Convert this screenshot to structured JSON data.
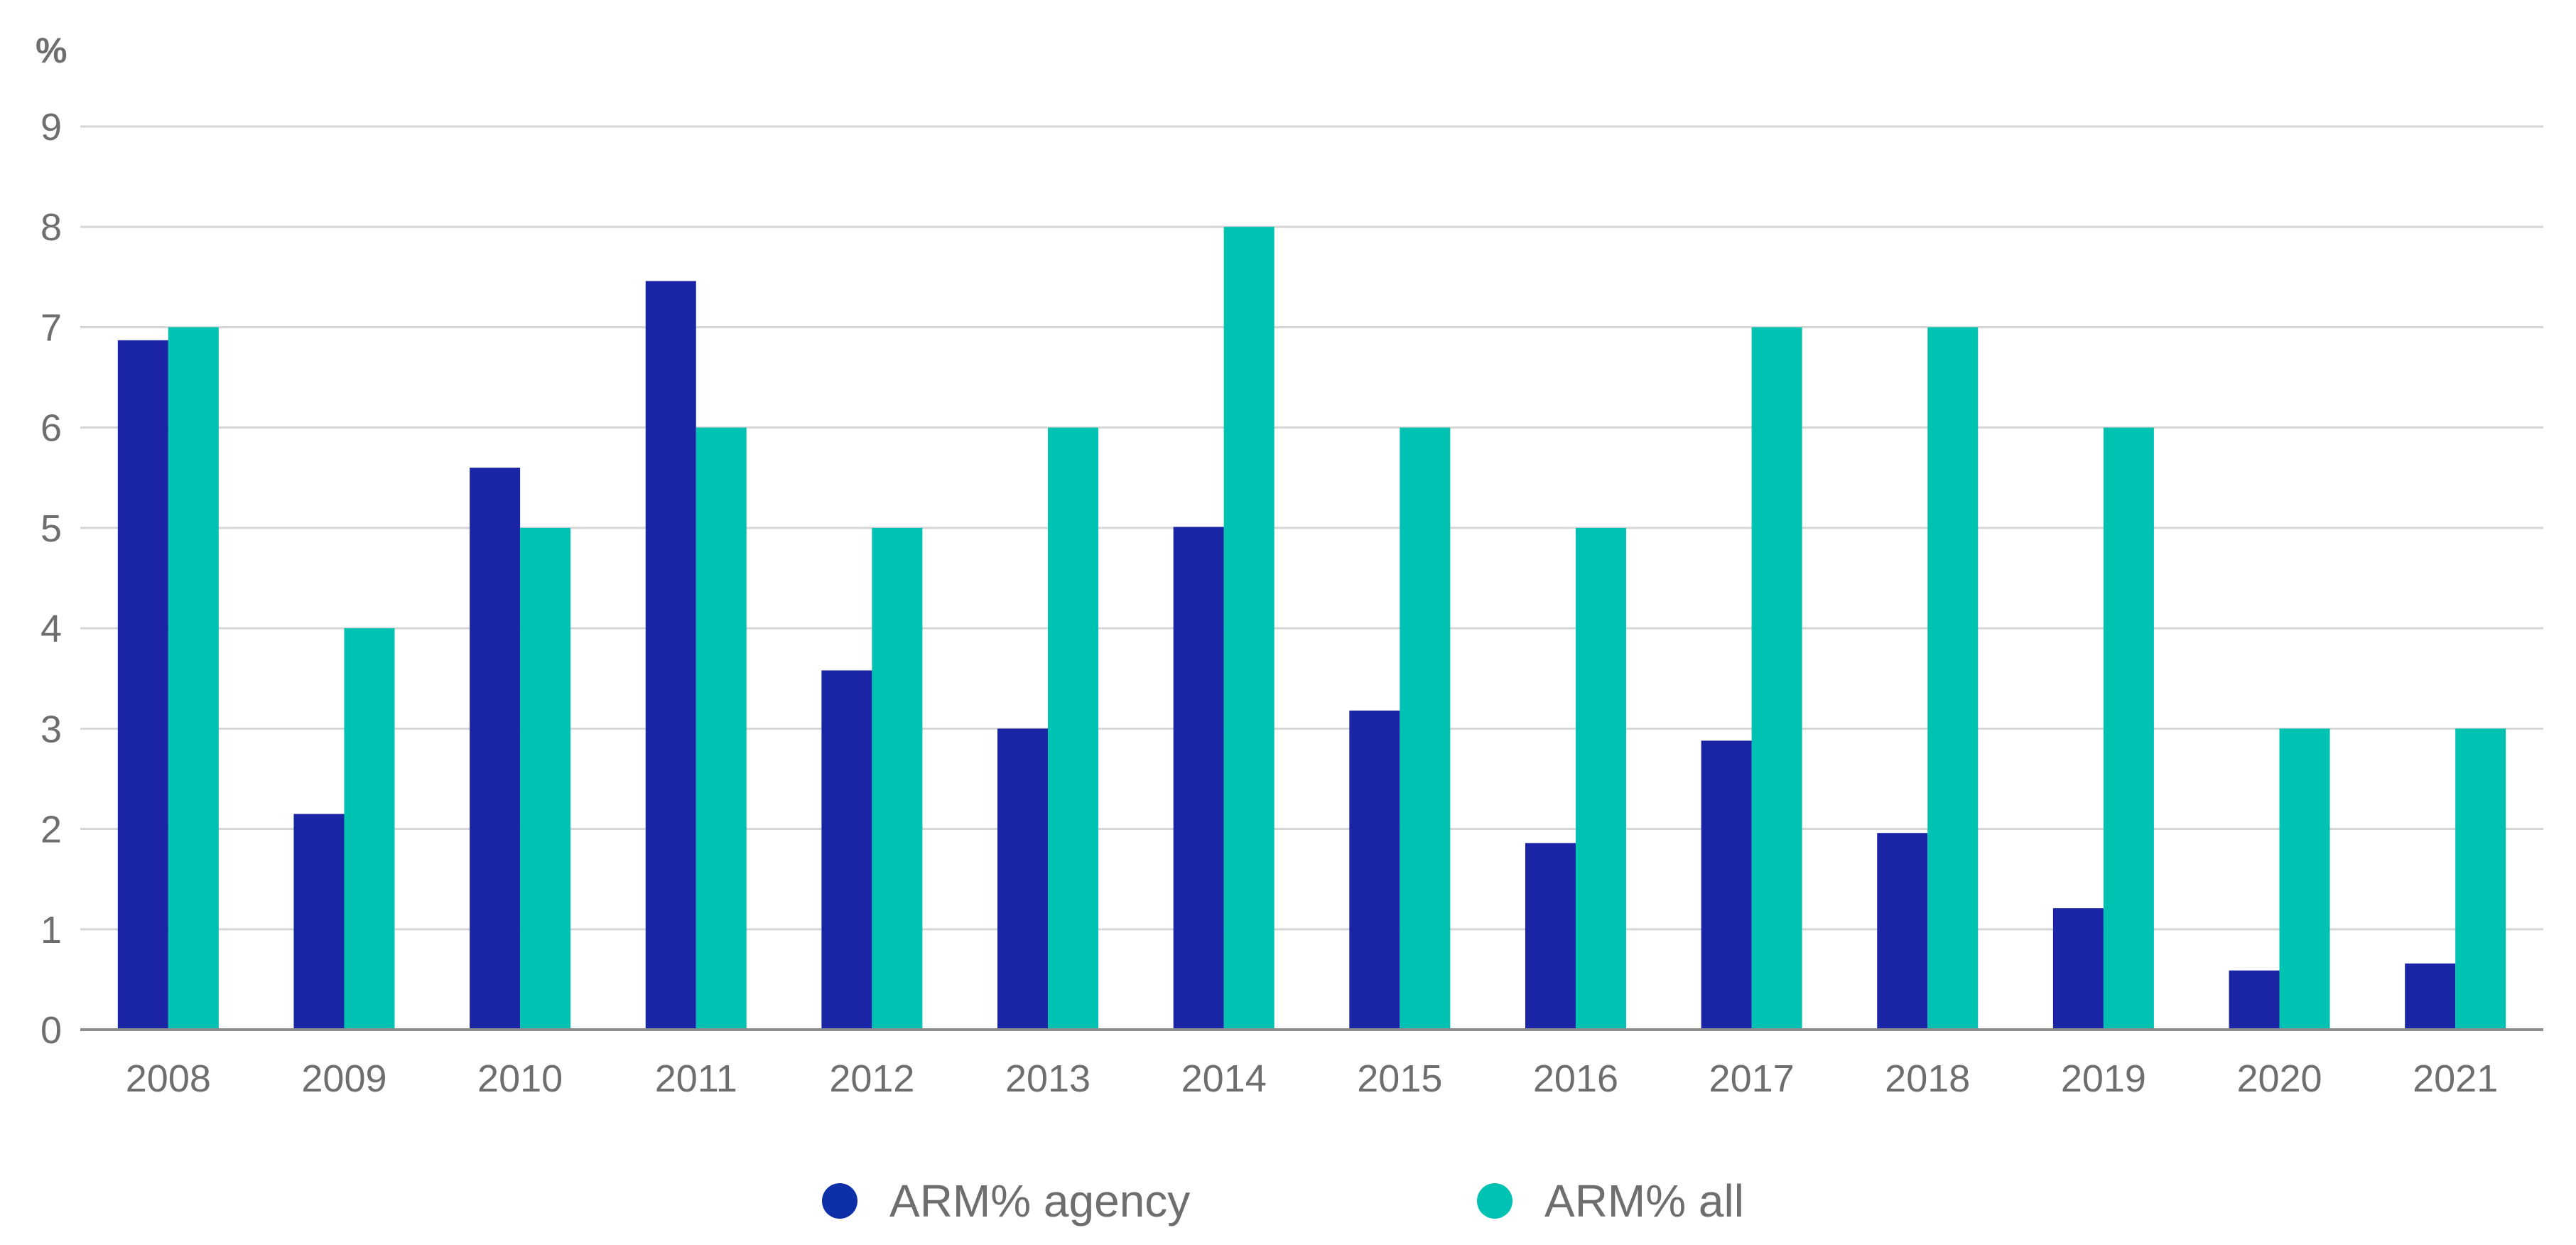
{
  "chart_data": {
    "type": "bar",
    "unit_label": "%",
    "categories": [
      "2008",
      "2009",
      "2010",
      "2011",
      "2012",
      "2013",
      "2014",
      "2015",
      "2016",
      "2017",
      "2018",
      "2019",
      "2020",
      "2021"
    ],
    "series": [
      {
        "name": "ARM% agency",
        "color": "#1a25a6",
        "legend_color": "#0d2fa8",
        "values": [
          6.87,
          2.15,
          5.6,
          7.46,
          3.58,
          3.0,
          5.01,
          3.18,
          1.86,
          2.88,
          1.96,
          1.21,
          0.59,
          0.66
        ]
      },
      {
        "name": "ARM% all",
        "color": "#00c2b2",
        "legend_color": "#00c2b2",
        "values": [
          7,
          4,
          5,
          6,
          5,
          6,
          8,
          6,
          5,
          7,
          7,
          6,
          3,
          3
        ]
      }
    ],
    "y_ticks": [
      "0",
      "1",
      "2",
      "3",
      "4",
      "5",
      "6",
      "7",
      "8",
      "9"
    ],
    "ylim": [
      0,
      9
    ],
    "grid": true,
    "legend_position": "bottom-center",
    "title": "",
    "xlabel": "",
    "ylabel": "",
    "colors": {
      "gridline": "#d6d6d6",
      "axis": "#8c8c8c",
      "text": "#6e6e6e"
    }
  }
}
